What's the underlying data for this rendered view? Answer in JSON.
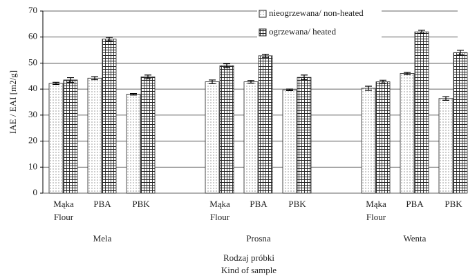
{
  "chart_data": {
    "type": "bar",
    "ylabel": "IAE / EAI [m2/g]",
    "xlabel": [
      "Rodzaj próbki",
      "Kind of sample"
    ],
    "groups": [
      "Mela",
      "Prosna",
      "Wenta"
    ],
    "categories": [
      [
        "Mąka",
        "Flour"
      ],
      [
        "PBA"
      ],
      [
        "PBK"
      ],
      [
        "Mąka",
        "Flour"
      ],
      [
        "PBA"
      ],
      [
        "PBK"
      ],
      [
        "Mąka",
        "Flour"
      ],
      [
        "PBA"
      ],
      [
        "PBK"
      ]
    ],
    "series": [
      {
        "name": "nieogrzewana/ non-heated",
        "color": "#ffffff",
        "pattern": "dots",
        "values": [
          42.2,
          44.2,
          38.0,
          42.8,
          42.8,
          39.7,
          40.3,
          46.0,
          36.4
        ],
        "errors": [
          0.4,
          0.6,
          0.3,
          0.7,
          0.5,
          0.3,
          0.8,
          0.4,
          0.7
        ]
      },
      {
        "name": "ogrzewana/ heated",
        "color": "#ffffff",
        "pattern": "grid",
        "values": [
          43.5,
          59.2,
          44.7,
          49.0,
          52.8,
          44.5,
          42.8,
          62.0,
          54.0
        ],
        "errors": [
          0.9,
          0.7,
          0.7,
          0.7,
          0.6,
          0.9,
          0.6,
          0.6,
          0.9
        ]
      }
    ],
    "ylim": [
      0,
      70
    ],
    "yticks": [
      0,
      10,
      20,
      30,
      40,
      50,
      60,
      70
    ],
    "grid": true,
    "legend": "top-right"
  }
}
